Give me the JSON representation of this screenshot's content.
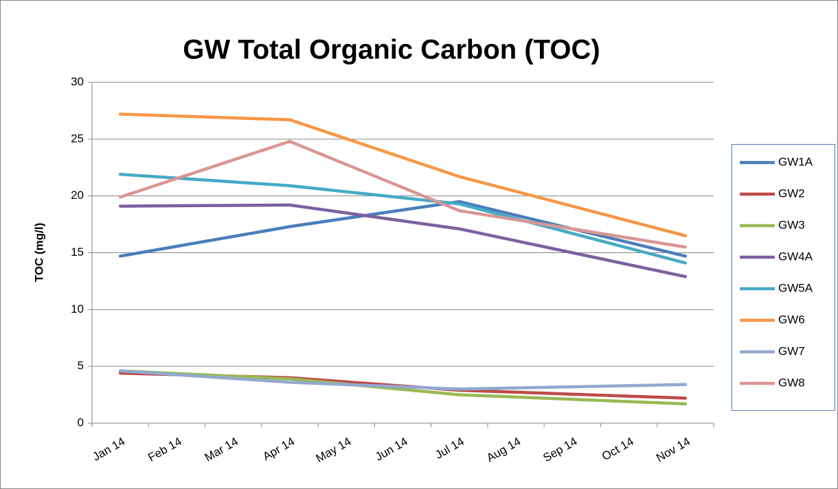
{
  "chart_data": {
    "type": "line",
    "title": "GW Total Organic Carbon (TOC)",
    "y_label": "TOC (mg/l)",
    "x": [
      "Jan 14",
      "Apr 14",
      "Jul 14",
      "Nov 14"
    ],
    "xticks": [
      "Jan 14",
      "Feb 14",
      "Mar 14",
      "Apr 14",
      "May 14",
      "Jun 14",
      "Jul 14",
      "Aug 14",
      "Sep 14",
      "Oct 14",
      "Nov 14"
    ],
    "ylim": [
      0,
      30
    ],
    "yticks": [
      0,
      5,
      10,
      15,
      20,
      25,
      30
    ],
    "grid": true,
    "legend": "right",
    "series": [
      {
        "name": "GW1A",
        "color": "#4a7ebb",
        "values": [
          14.7,
          17.3,
          19.5,
          14.7
        ]
      },
      {
        "name": "GW2",
        "color": "#be4b48",
        "values": [
          4.4,
          4.0,
          2.9,
          2.2
        ]
      },
      {
        "name": "GW3",
        "color": "#98b954",
        "values": [
          4.6,
          3.9,
          2.5,
          1.7
        ]
      },
      {
        "name": "GW4A",
        "color": "#7d60a0",
        "values": [
          19.1,
          19.2,
          17.1,
          12.9
        ]
      },
      {
        "name": "GW5A",
        "color": "#46aac5",
        "values": [
          21.9,
          20.9,
          19.3,
          14.1
        ]
      },
      {
        "name": "GW6",
        "color": "#f79646",
        "values": [
          27.2,
          26.7,
          21.7,
          16.5
        ]
      },
      {
        "name": "GW7",
        "color": "#92a9cf",
        "values": [
          4.6,
          3.6,
          3.0,
          3.4
        ]
      },
      {
        "name": "GW8",
        "color": "#d99694",
        "values": [
          19.9,
          24.8,
          18.7,
          15.5
        ]
      }
    ]
  }
}
